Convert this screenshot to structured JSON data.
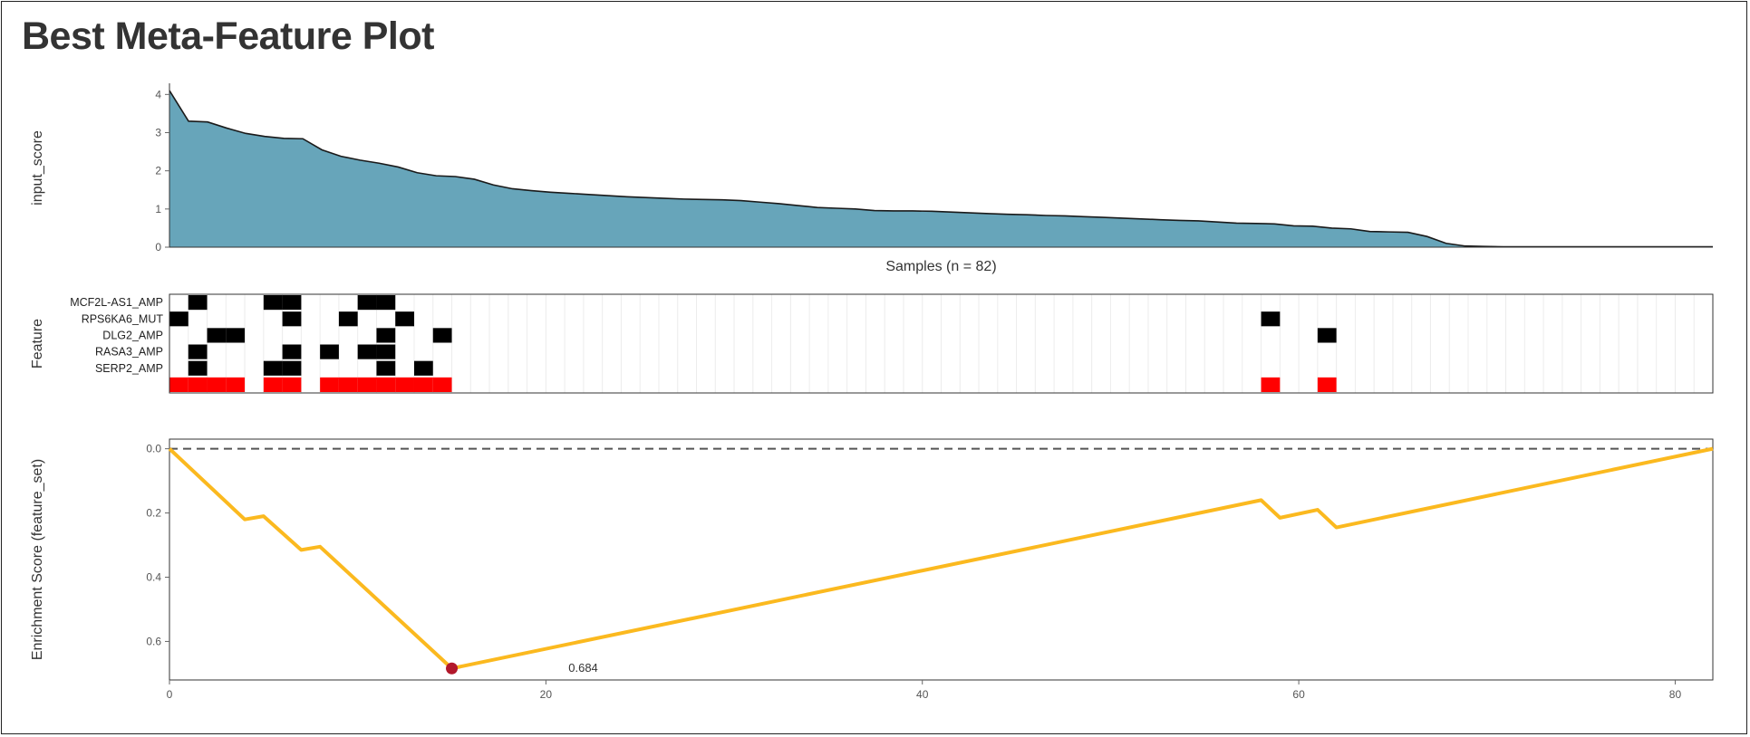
{
  "title": "Best Meta-Feature Plot",
  "colors": {
    "area_fill": "#67a5ba",
    "area_line": "#1a1a1a",
    "feature_hit": "#000000",
    "meta_hit": "#ff0000",
    "es_line": "#fbb91f",
    "es_point": "#b2182b",
    "zero_line": "#555555"
  },
  "chart_data": [
    {
      "type": "area",
      "name": "input_score",
      "ylabel": "input_score",
      "xlabel": "Samples (n = 82)",
      "ylim": [
        0,
        4.15
      ],
      "yticks": [
        0,
        1,
        2,
        3,
        4
      ],
      "n": 82,
      "values": [
        4.1,
        3.3,
        3.28,
        3.12,
        2.98,
        2.9,
        2.85,
        2.84,
        2.55,
        2.38,
        2.28,
        2.2,
        2.1,
        1.95,
        1.87,
        1.85,
        1.78,
        1.63,
        1.53,
        1.48,
        1.44,
        1.41,
        1.38,
        1.35,
        1.32,
        1.3,
        1.28,
        1.26,
        1.25,
        1.24,
        1.22,
        1.18,
        1.14,
        1.09,
        1.04,
        1.02,
        1.0,
        0.96,
        0.95,
        0.95,
        0.94,
        0.92,
        0.9,
        0.88,
        0.86,
        0.85,
        0.83,
        0.82,
        0.8,
        0.78,
        0.76,
        0.74,
        0.72,
        0.7,
        0.69,
        0.66,
        0.63,
        0.62,
        0.61,
        0.56,
        0.55,
        0.5,
        0.48,
        0.41,
        0.4,
        0.39,
        0.28,
        0.1,
        0.03,
        0.02,
        0.01,
        0.01,
        0.01,
        0.01,
        0.01,
        0.01,
        0.01,
        0.01,
        0.01,
        0.01,
        0.01,
        0.01
      ]
    },
    {
      "type": "heatmap",
      "name": "feature_tiles",
      "ylabel": "Feature",
      "n": 82,
      "rows": [
        {
          "label": "MCF2L-AS1_AMP",
          "hits": [
            2,
            6,
            7,
            11,
            12
          ]
        },
        {
          "label": "RPS6KA6_MUT",
          "hits": [
            1,
            7,
            10,
            13,
            59
          ]
        },
        {
          "label": "DLG2_AMP",
          "hits": [
            3,
            4,
            12,
            15,
            62
          ]
        },
        {
          "label": "RASA3_AMP",
          "hits": [
            2,
            7,
            9,
            11,
            12
          ]
        },
        {
          "label": "SERP2_AMP",
          "hits": [
            2,
            6,
            7,
            12,
            14
          ]
        },
        {
          "label": "",
          "hits": [
            1,
            2,
            3,
            4,
            6,
            7,
            9,
            10,
            11,
            12,
            13,
            14,
            15,
            59,
            62
          ],
          "meta": true
        }
      ]
    },
    {
      "type": "line",
      "name": "enrichment_score",
      "ylabel": "Enrichment Score (feature_set)",
      "xlim": [
        0,
        82
      ],
      "ylim": [
        0.72,
        -0.03
      ],
      "xticks": [
        0,
        20,
        40,
        60,
        80
      ],
      "yticks": [
        0.0,
        0.2,
        0.4,
        0.6
      ],
      "ytick_labels": [
        "0.0",
        "0.2",
        "0.4",
        "0.6"
      ],
      "x": [
        0,
        4,
        5,
        7,
        8,
        15,
        58,
        59,
        61,
        62,
        82
      ],
      "y": [
        0.0,
        0.22,
        0.21,
        0.315,
        0.305,
        0.684,
        0.16,
        0.215,
        0.19,
        0.245,
        0.0
      ],
      "peak": {
        "x": 15,
        "y": 0.684,
        "label": "0.684"
      }
    }
  ]
}
